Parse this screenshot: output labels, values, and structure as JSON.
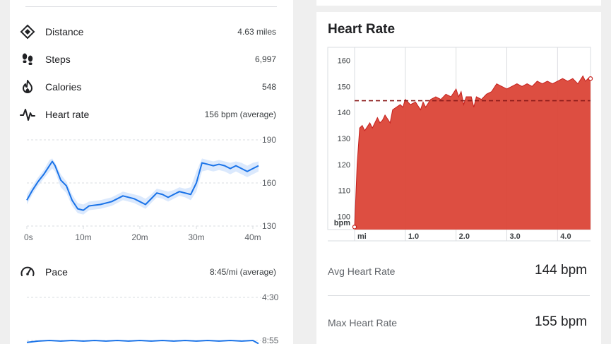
{
  "metrics": [
    {
      "label": "Distance",
      "value": "4.63 miles",
      "icon": "diamond-pin-icon"
    },
    {
      "label": "Steps",
      "value": "6,997",
      "icon": "footprints-icon"
    },
    {
      "label": "Calories",
      "value": "548",
      "icon": "flame-icon"
    },
    {
      "label": "Heart rate",
      "value": "156 bpm (average)",
      "icon": "pulse-icon"
    }
  ],
  "pace": {
    "label": "Pace",
    "value": "8:45/mi (average)",
    "icon": "speedometer-icon"
  },
  "colors": {
    "accent_blue": "#1a73e8",
    "band_blue": "#d2e3fc",
    "hr_red": "#db4437",
    "avg_line": "#8b1a1a"
  },
  "chart_data": [
    {
      "type": "line",
      "title": "Heart rate",
      "x_unit": "minutes",
      "xlim": [
        0,
        41
      ],
      "ylim": [
        130,
        190
      ],
      "yticks": [
        "190",
        "160",
        "130"
      ],
      "xticks": [
        "0s",
        "10m",
        "20m",
        "30m",
        "40m"
      ],
      "xtick_values": [
        0,
        10,
        20,
        30,
        40
      ],
      "x": [
        0,
        1,
        2,
        3,
        4,
        4.5,
        5,
        6,
        7,
        8,
        9,
        10,
        11,
        13,
        15,
        17,
        18,
        19,
        20,
        21,
        22,
        23,
        24,
        25,
        26,
        27,
        28,
        29,
        30,
        31,
        32,
        33,
        34,
        35,
        36,
        37,
        38,
        39,
        40,
        41
      ],
      "y": [
        148,
        155,
        161,
        166,
        172,
        175,
        172,
        162,
        158,
        148,
        142,
        141,
        144,
        145,
        147,
        151,
        150,
        149,
        147,
        145,
        149,
        153,
        152,
        150,
        152,
        154,
        153,
        152,
        160,
        174,
        173,
        172,
        173,
        172,
        170,
        172,
        170,
        168,
        170,
        172
      ],
      "band_upper": [
        152,
        158,
        164,
        169,
        176,
        177,
        174,
        166,
        161,
        152,
        146,
        145,
        147,
        148,
        150,
        154,
        153,
        152,
        151,
        149,
        152,
        156,
        155,
        154,
        155,
        157,
        156,
        157,
        168,
        177,
        176,
        175,
        176,
        175,
        174,
        175,
        174,
        172,
        174,
        175
      ],
      "band_lower": [
        145,
        152,
        158,
        163,
        168,
        170,
        168,
        157,
        153,
        144,
        139,
        138,
        141,
        142,
        144,
        148,
        147,
        146,
        144,
        142,
        146,
        150,
        149,
        147,
        149,
        151,
        150,
        148,
        154,
        168,
        169,
        168,
        169,
        168,
        166,
        168,
        166,
        164,
        166,
        168
      ]
    },
    {
      "type": "line",
      "title": "Pace",
      "yticks": [
        "4:30",
        "8:55"
      ],
      "x": [
        0,
        2,
        4,
        6,
        8,
        10,
        12,
        14,
        16,
        18,
        20,
        22,
        24,
        26,
        28,
        30,
        32,
        34,
        36,
        38,
        40,
        41
      ],
      "y_minutes": [
        8.95,
        8.93,
        8.92,
        8.93,
        8.92,
        8.93,
        8.92,
        8.93,
        8.92,
        8.93,
        8.92,
        8.93,
        8.92,
        8.93,
        8.92,
        8.93,
        8.92,
        8.93,
        8.92,
        8.93,
        8.92,
        8.97
      ]
    },
    {
      "type": "area",
      "title": "Heart Rate",
      "x_unit": "mi",
      "xlim": [
        0,
        4.65
      ],
      "ylim": [
        95,
        165
      ],
      "yticks": [
        100,
        110,
        120,
        130,
        140,
        150,
        160
      ],
      "xtick_labels": [
        "mi",
        "1.0",
        "2.0",
        "3.0",
        "4.0"
      ],
      "xtick_values": [
        0,
        1,
        2,
        3,
        4
      ],
      "y_unit_label": "bpm",
      "average": 144.5,
      "x": [
        0,
        0.05,
        0.1,
        0.15,
        0.2,
        0.3,
        0.35,
        0.45,
        0.5,
        0.55,
        0.6,
        0.7,
        0.75,
        0.9,
        0.95,
        1.0,
        1.1,
        1.2,
        1.3,
        1.35,
        1.4,
        1.5,
        1.6,
        1.7,
        1.8,
        1.9,
        2.0,
        2.05,
        2.1,
        2.15,
        2.2,
        2.3,
        2.35,
        2.4,
        2.5,
        2.6,
        2.7,
        2.8,
        2.9,
        3.0,
        3.1,
        3.2,
        3.3,
        3.4,
        3.5,
        3.6,
        3.7,
        3.8,
        3.9,
        4.0,
        4.1,
        4.2,
        4.3,
        4.4,
        4.5,
        4.55,
        4.6,
        4.65
      ],
      "y": [
        96,
        120,
        134,
        135,
        133,
        136,
        134,
        138,
        136,
        137,
        139,
        136,
        141,
        143,
        142,
        145,
        143,
        144,
        141,
        144,
        142,
        145,
        146,
        145,
        147,
        146,
        149,
        146,
        148,
        143,
        146,
        146,
        142,
        146,
        145,
        147,
        148,
        151,
        150,
        149,
        150,
        151,
        150,
        151,
        150,
        152,
        151,
        152,
        151,
        152,
        153,
        152,
        153,
        151,
        154,
        152,
        153,
        153
      ]
    }
  ],
  "heart_rate_panel": {
    "title": "Heart Rate",
    "stats": [
      {
        "label": "Avg Heart Rate",
        "value": "144 bpm"
      },
      {
        "label": "Max Heart Rate",
        "value": "155 bpm"
      }
    ]
  }
}
